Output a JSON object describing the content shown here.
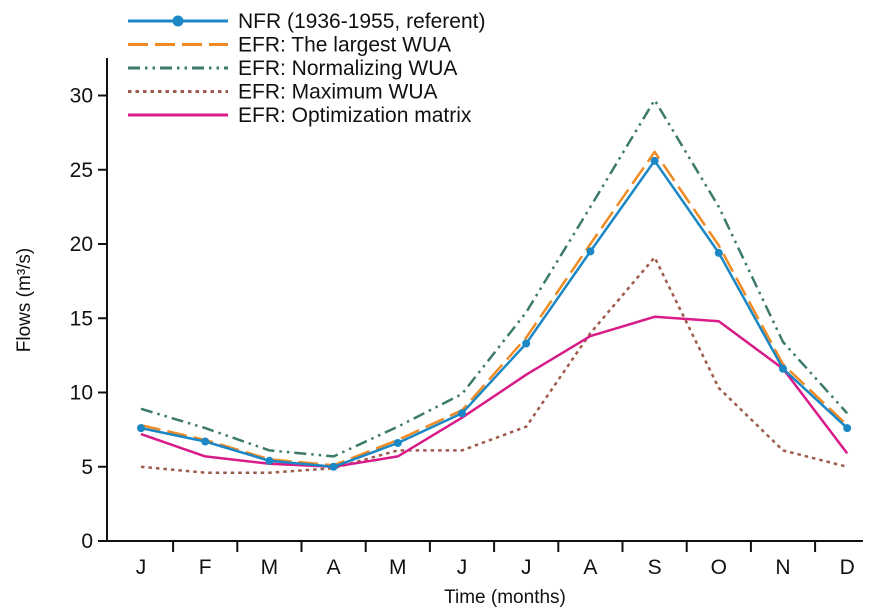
{
  "chart_data": {
    "type": "line",
    "categories": [
      "J",
      "F",
      "M",
      "A",
      "M",
      "J",
      "J",
      "A",
      "S",
      "O",
      "N",
      "D"
    ],
    "xlabel": "Time (months)",
    "ylabel": "Flows (m³/s)",
    "ylim": [
      0,
      32
    ],
    "yticks": [
      0,
      5,
      10,
      15,
      20,
      25,
      30
    ],
    "grid": false,
    "legend_position": "top-left",
    "series": [
      {
        "name": "NFR (1936-1955, referent)",
        "color": "#1b87c4",
        "style": "solid-markers",
        "values": [
          7.6,
          6.7,
          5.4,
          5.0,
          6.6,
          8.6,
          13.3,
          19.5,
          25.6,
          19.4,
          11.6,
          7.6
        ]
      },
      {
        "name": "EFR: The largest WUA",
        "color": "#ef8a24",
        "style": "dashed",
        "values": [
          7.8,
          6.8,
          5.5,
          5.1,
          6.8,
          8.8,
          13.7,
          20.0,
          26.2,
          19.9,
          11.9,
          7.8
        ]
      },
      {
        "name": "EFR: Normalizing WUA",
        "color": "#3c7a6c",
        "style": "dash-dot-dot",
        "values": [
          8.9,
          7.6,
          6.1,
          5.7,
          7.7,
          9.9,
          15.4,
          22.5,
          29.7,
          22.5,
          13.4,
          8.6
        ]
      },
      {
        "name": "EFR: Maximum WUA",
        "color": "#9e5a4a",
        "style": "dotted",
        "values": [
          5.0,
          4.6,
          4.6,
          4.9,
          6.1,
          6.1,
          7.7,
          14.0,
          19.1,
          10.3,
          6.1,
          5.0
        ]
      },
      {
        "name": "EFR: Optimization matrix",
        "color": "#d81b88",
        "style": "solid",
        "values": [
          7.2,
          5.7,
          5.2,
          5.0,
          5.7,
          8.3,
          11.2,
          13.8,
          15.1,
          14.8,
          11.6,
          5.9
        ]
      }
    ]
  }
}
